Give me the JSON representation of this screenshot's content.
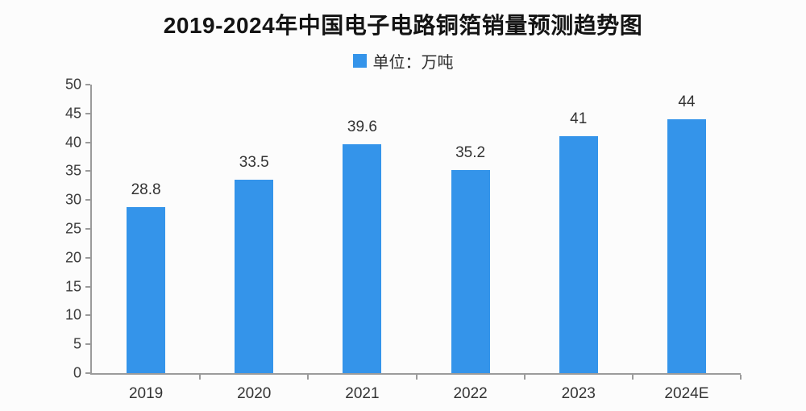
{
  "title": "2019-2024年中国电子电路铜箔销量预测趋势图",
  "legend": {
    "label": "单位：万吨",
    "swatch_color": "#3494EA"
  },
  "colors": {
    "bar": "#3494EA",
    "axis": "#9b9b9b",
    "text": "#333333",
    "title": "#141414"
  },
  "chart_data": {
    "type": "bar",
    "title": "2019-2024年中国电子电路铜箔销量预测趋势图",
    "unit_legend": "单位：万吨",
    "categories": [
      "2019",
      "2020",
      "2021",
      "2022",
      "2023",
      "2024E"
    ],
    "values": [
      28.8,
      33.5,
      39.6,
      35.2,
      41,
      44
    ],
    "value_labels": [
      "28.8",
      "33.5",
      "39.6",
      "35.2",
      "41",
      "44"
    ],
    "xlabel": "",
    "ylabel": "",
    "ylim": [
      0,
      50
    ],
    "yticks": [
      0,
      5,
      10,
      15,
      20,
      25,
      30,
      35,
      40,
      45,
      50
    ],
    "grid": false,
    "legend_position": "top-center",
    "bar_color": "#3494EA"
  }
}
